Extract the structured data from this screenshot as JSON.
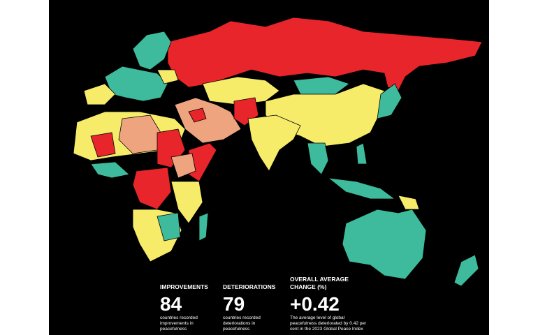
{
  "stats": [
    {
      "heading": "IMPROVEMENTS",
      "value": 84,
      "description": [
        "countries recorded",
        "improvements in",
        "peacefulness"
      ]
    },
    {
      "heading": "DETERIORATIONS",
      "value": 79,
      "description": [
        "countries recorded",
        "deteriorations in",
        "peacefulness"
      ]
    },
    {
      "heading": [
        "OVERALL AVERAGE",
        "CHANGE (%)"
      ],
      "value": "+0.42",
      "description": [
        "The average level of global",
        "peacefulness deteriorated by 0.42 per",
        "cent in the 2023 Global Peace Index"
      ]
    }
  ]
}
